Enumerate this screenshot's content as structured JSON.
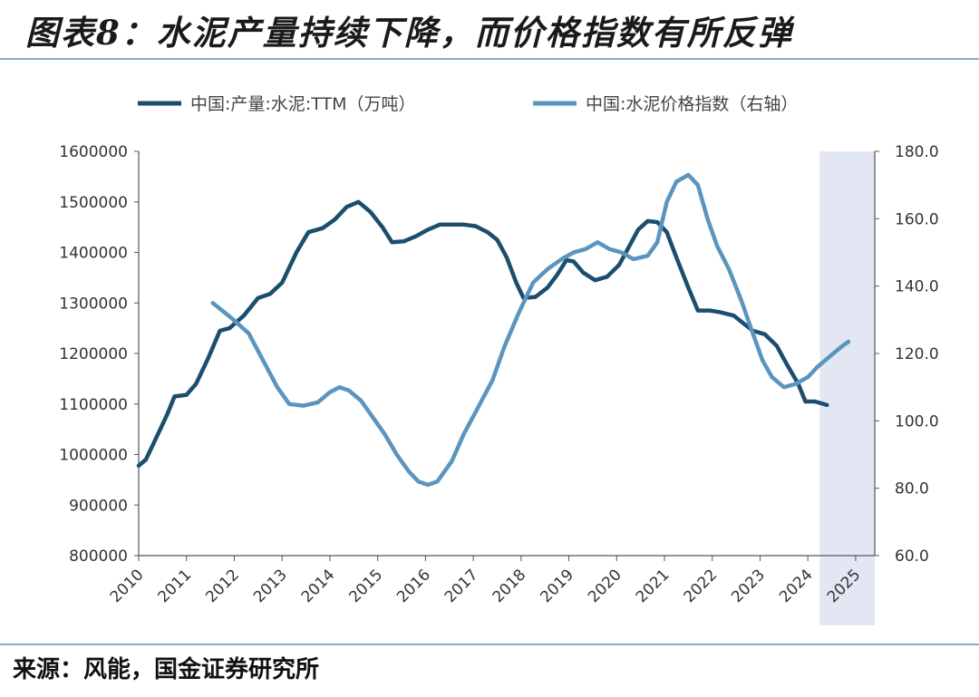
{
  "figure": {
    "title": "图表8：水泥产量持续下降，而价格指数有所反弹",
    "source": "来源：风能，国金证券研究所"
  },
  "chart_data": {
    "type": "line",
    "title": "",
    "xlabel": "",
    "ylabel_left": "",
    "ylabel_right": "",
    "x_ticks": [
      "2010",
      "2011",
      "2012",
      "2013",
      "2014",
      "2015",
      "2016",
      "2017",
      "2018",
      "2019",
      "2020",
      "2021",
      "2022",
      "2023",
      "2024",
      "2025"
    ],
    "xlim": [
      2010.0,
      2025.4
    ],
    "y_left_ticks": [
      "800000",
      "900000",
      "1000000",
      "1100000",
      "1200000",
      "1300000",
      "1400000",
      "1500000",
      "1600000"
    ],
    "y_left_lim": [
      800000,
      1600000
    ],
    "y_right_ticks": [
      "60.0",
      "80.0",
      "100.0",
      "120.0",
      "140.0",
      "160.0",
      "180.0"
    ],
    "y_right_lim": [
      60,
      180
    ],
    "grid": false,
    "legend_position": "top",
    "shaded_region": {
      "from": 2024.25,
      "to": 2025.4,
      "color": "#e3e7f3"
    },
    "series": [
      {
        "name": "中国:产量:水泥:TTM（万吨）",
        "axis": "left",
        "color": "#1b4e6e",
        "points": [
          [
            2010.0,
            978000
          ],
          [
            2010.15,
            990000
          ],
          [
            2010.35,
            1030000
          ],
          [
            2010.6,
            1080000
          ],
          [
            2010.75,
            1115000
          ],
          [
            2011.0,
            1118000
          ],
          [
            2011.2,
            1140000
          ],
          [
            2011.45,
            1190000
          ],
          [
            2011.7,
            1245000
          ],
          [
            2011.9,
            1250000
          ],
          [
            2012.2,
            1275000
          ],
          [
            2012.5,
            1310000
          ],
          [
            2012.75,
            1318000
          ],
          [
            2013.0,
            1340000
          ],
          [
            2013.3,
            1400000
          ],
          [
            2013.55,
            1440000
          ],
          [
            2013.85,
            1448000
          ],
          [
            2014.1,
            1465000
          ],
          [
            2014.35,
            1490000
          ],
          [
            2014.6,
            1500000
          ],
          [
            2014.85,
            1480000
          ],
          [
            2015.1,
            1450000
          ],
          [
            2015.3,
            1420000
          ],
          [
            2015.55,
            1422000
          ],
          [
            2015.8,
            1432000
          ],
          [
            2016.05,
            1445000
          ],
          [
            2016.3,
            1455000
          ],
          [
            2016.55,
            1455000
          ],
          [
            2016.8,
            1455000
          ],
          [
            2017.05,
            1452000
          ],
          [
            2017.3,
            1440000
          ],
          [
            2017.5,
            1425000
          ],
          [
            2017.7,
            1390000
          ],
          [
            2017.9,
            1340000
          ],
          [
            2018.05,
            1310000
          ],
          [
            2018.3,
            1312000
          ],
          [
            2018.55,
            1330000
          ],
          [
            2018.75,
            1355000
          ],
          [
            2018.95,
            1385000
          ],
          [
            2019.1,
            1382000
          ],
          [
            2019.3,
            1360000
          ],
          [
            2019.55,
            1345000
          ],
          [
            2019.8,
            1352000
          ],
          [
            2020.05,
            1375000
          ],
          [
            2020.25,
            1410000
          ],
          [
            2020.45,
            1445000
          ],
          [
            2020.65,
            1462000
          ],
          [
            2020.85,
            1460000
          ],
          [
            2021.05,
            1440000
          ],
          [
            2021.25,
            1390000
          ],
          [
            2021.5,
            1330000
          ],
          [
            2021.7,
            1285000
          ],
          [
            2021.95,
            1285000
          ],
          [
            2022.15,
            1282000
          ],
          [
            2022.45,
            1275000
          ],
          [
            2022.65,
            1260000
          ],
          [
            2022.85,
            1245000
          ],
          [
            2023.1,
            1238000
          ],
          [
            2023.35,
            1215000
          ],
          [
            2023.55,
            1180000
          ],
          [
            2023.8,
            1140000
          ],
          [
            2023.95,
            1105000
          ],
          [
            2024.15,
            1105000
          ],
          [
            2024.4,
            1098000
          ]
        ]
      },
      {
        "name": "中国:水泥价格指数（右轴）",
        "axis": "right",
        "color": "#5b95bf",
        "points": [
          [
            2011.55,
            135.0
          ],
          [
            2011.9,
            131.0
          ],
          [
            2012.3,
            126.0
          ],
          [
            2012.6,
            118.0
          ],
          [
            2012.9,
            110.0
          ],
          [
            2013.15,
            105.0
          ],
          [
            2013.45,
            104.5
          ],
          [
            2013.75,
            105.5
          ],
          [
            2014.0,
            108.5
          ],
          [
            2014.2,
            110.0
          ],
          [
            2014.4,
            109.0
          ],
          [
            2014.65,
            106.0
          ],
          [
            2014.9,
            101.0
          ],
          [
            2015.15,
            96.0
          ],
          [
            2015.4,
            90.0
          ],
          [
            2015.65,
            85.0
          ],
          [
            2015.85,
            82.0
          ],
          [
            2016.05,
            81.0
          ],
          [
            2016.25,
            82.0
          ],
          [
            2016.55,
            88.0
          ],
          [
            2016.8,
            96.0
          ],
          [
            2017.1,
            104.0
          ],
          [
            2017.4,
            112.0
          ],
          [
            2017.65,
            122.0
          ],
          [
            2017.95,
            132.0
          ],
          [
            2018.25,
            141.0
          ],
          [
            2018.55,
            145.0
          ],
          [
            2018.85,
            148.0
          ],
          [
            2019.1,
            150.0
          ],
          [
            2019.35,
            151.0
          ],
          [
            2019.6,
            153.0
          ],
          [
            2019.85,
            151.0
          ],
          [
            2020.1,
            150.0
          ],
          [
            2020.35,
            148.0
          ],
          [
            2020.65,
            149.0
          ],
          [
            2020.85,
            153.0
          ],
          [
            2021.05,
            165.0
          ],
          [
            2021.25,
            171.0
          ],
          [
            2021.5,
            173.0
          ],
          [
            2021.7,
            170.0
          ],
          [
            2021.9,
            160.0
          ],
          [
            2022.1,
            152.0
          ],
          [
            2022.35,
            145.0
          ],
          [
            2022.6,
            136.0
          ],
          [
            2022.85,
            126.0
          ],
          [
            2023.05,
            118.0
          ],
          [
            2023.25,
            113.0
          ],
          [
            2023.5,
            110.0
          ],
          [
            2023.75,
            111.0
          ],
          [
            2024.0,
            113.0
          ],
          [
            2024.2,
            116.0
          ],
          [
            2024.45,
            119.0
          ],
          [
            2024.7,
            122.0
          ],
          [
            2024.85,
            123.5
          ]
        ]
      }
    ]
  }
}
